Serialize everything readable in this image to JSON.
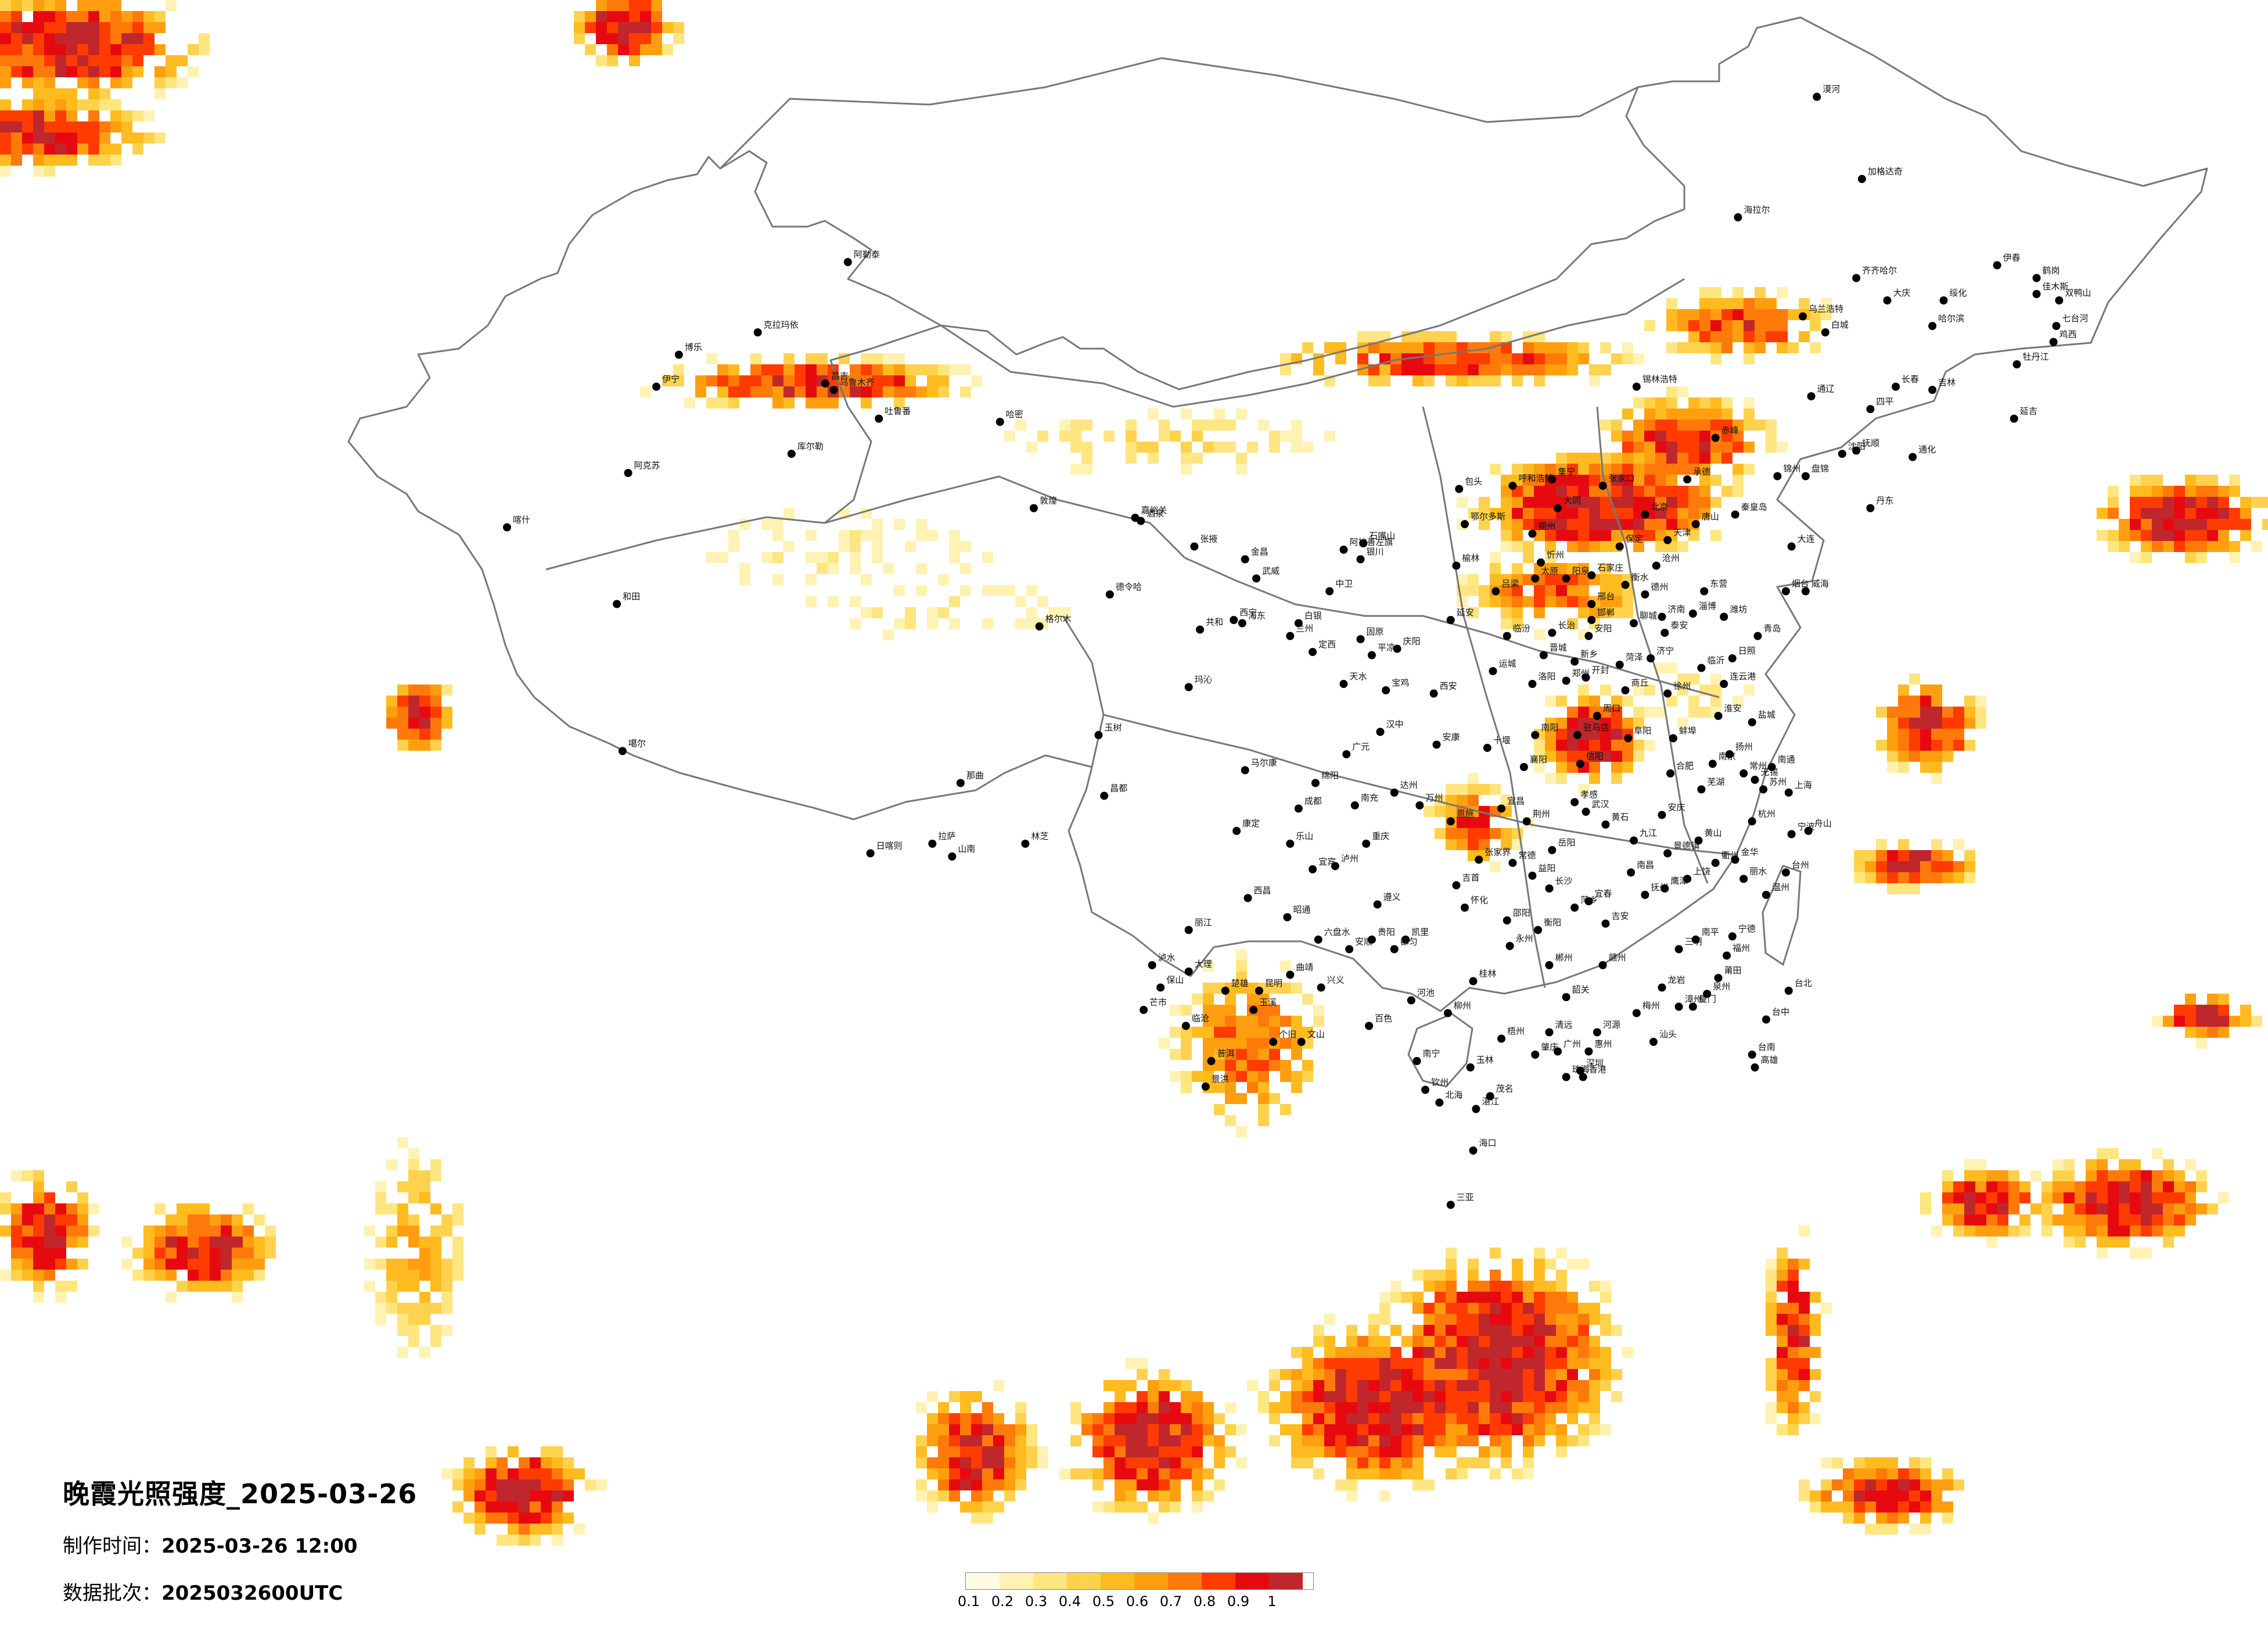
{
  "title": "晚霞光照强度_2025-03-26",
  "info": {
    "made_time_label": "制作时间：",
    "made_time_value": "2025-03-26 12:00",
    "batch_label": "数据批次：",
    "batch_value": "2025032600UTC"
  },
  "legend": {
    "ticks": [
      "0.1",
      "0.2",
      "0.3",
      "0.4",
      "0.5",
      "0.6",
      "0.7",
      "0.8",
      "0.9",
      "1"
    ],
    "colors": [
      "#fffbe6",
      "#fff2b3",
      "#ffe680",
      "#ffd24d",
      "#ffbb1f",
      "#ff9f0f",
      "#ff7a0a",
      "#ff3b00",
      "#e60a10",
      "#c0272d"
    ]
  },
  "cities": [
    {
      "name": "漠河",
      "lon": 122.5,
      "lat": 52.97
    },
    {
      "name": "加格达奇",
      "lon": 124.1,
      "lat": 50.4
    },
    {
      "name": "海拉尔",
      "lon": 119.7,
      "lat": 49.2
    },
    {
      "name": "齐齐哈尔",
      "lon": 123.9,
      "lat": 47.3
    },
    {
      "name": "伊春",
      "lon": 128.9,
      "lat": 47.7
    },
    {
      "name": "鹤岗",
      "lon": 130.3,
      "lat": 47.3
    },
    {
      "name": "佳木斯",
      "lon": 130.3,
      "lat": 46.8
    },
    {
      "name": "双鸭山",
      "lon": 131.1,
      "lat": 46.6
    },
    {
      "name": "大庆",
      "lon": 125.0,
      "lat": 46.6
    },
    {
      "name": "绥化",
      "lon": 127.0,
      "lat": 46.6
    },
    {
      "name": "哈尔滨",
      "lon": 126.6,
      "lat": 45.8
    },
    {
      "name": "七台河",
      "lon": 131.0,
      "lat": 45.8
    },
    {
      "name": "鸡西",
      "lon": 130.9,
      "lat": 45.3
    },
    {
      "name": "乌兰浩特",
      "lon": 122.0,
      "lat": 46.1
    },
    {
      "name": "白城",
      "lon": 122.8,
      "lat": 45.6
    },
    {
      "name": "牡丹江",
      "lon": 129.6,
      "lat": 44.6
    },
    {
      "name": "锡林浩特",
      "lon": 116.1,
      "lat": 43.9
    },
    {
      "name": "通辽",
      "lon": 122.3,
      "lat": 43.6
    },
    {
      "name": "长春",
      "lon": 125.3,
      "lat": 43.9
    },
    {
      "name": "吉林",
      "lon": 126.6,
      "lat": 43.8
    },
    {
      "name": "四平",
      "lon": 124.4,
      "lat": 43.2
    },
    {
      "name": "延吉",
      "lon": 129.5,
      "lat": 42.9
    },
    {
      "name": "通化",
      "lon": 125.9,
      "lat": 41.7
    },
    {
      "name": "赤峰",
      "lon": 118.9,
      "lat": 42.3
    },
    {
      "name": "沈阳",
      "lon": 123.4,
      "lat": 41.8
    },
    {
      "name": "抚顺",
      "lon": 123.9,
      "lat": 41.9
    },
    {
      "name": "锦州",
      "lon": 121.1,
      "lat": 41.1
    },
    {
      "name": "盘锦",
      "lon": 122.1,
      "lat": 41.1
    },
    {
      "name": "丹东",
      "lon": 124.4,
      "lat": 40.1
    },
    {
      "name": "大连",
      "lon": 121.6,
      "lat": 38.9
    },
    {
      "name": "承德",
      "lon": 117.9,
      "lat": 41.0
    },
    {
      "name": "张家口",
      "lon": 114.9,
      "lat": 40.8
    },
    {
      "name": "北京",
      "lon": 116.4,
      "lat": 39.9
    },
    {
      "name": "天津",
      "lon": 117.2,
      "lat": 39.1
    },
    {
      "name": "唐山",
      "lon": 118.2,
      "lat": 39.6
    },
    {
      "name": "秦皇岛",
      "lon": 119.6,
      "lat": 39.9
    },
    {
      "name": "保定",
      "lon": 115.5,
      "lat": 38.9
    },
    {
      "name": "石家庄",
      "lon": 114.5,
      "lat": 38.0
    },
    {
      "name": "邢台",
      "lon": 114.5,
      "lat": 37.1
    },
    {
      "name": "邯郸",
      "lon": 114.5,
      "lat": 36.6
    },
    {
      "name": "衡水",
      "lon": 115.7,
      "lat": 37.7
    },
    {
      "name": "沧州",
      "lon": 116.8,
      "lat": 38.3
    },
    {
      "name": "呼和浩特",
      "lon": 111.7,
      "lat": 40.8
    },
    {
      "name": "包头",
      "lon": 109.8,
      "lat": 40.7
    },
    {
      "name": "集宁",
      "lon": 113.1,
      "lat": 41.0
    },
    {
      "name": "大同",
      "lon": 113.3,
      "lat": 40.1
    },
    {
      "name": "朔州",
      "lon": 112.4,
      "lat": 39.3
    },
    {
      "name": "忻州",
      "lon": 112.7,
      "lat": 38.4
    },
    {
      "name": "太原",
      "lon": 112.5,
      "lat": 37.9
    },
    {
      "name": "阳泉",
      "lon": 113.6,
      "lat": 37.9
    },
    {
      "name": "长治",
      "lon": 113.1,
      "lat": 36.2
    },
    {
      "name": "晋城",
      "lon": 112.8,
      "lat": 35.5
    },
    {
      "name": "临汾",
      "lon": 111.5,
      "lat": 36.1
    },
    {
      "name": "运城",
      "lon": 111.0,
      "lat": 35.0
    },
    {
      "name": "吕梁",
      "lon": 111.1,
      "lat": 37.5
    },
    {
      "name": "鄂尔多斯",
      "lon": 110.0,
      "lat": 39.6
    },
    {
      "name": "榆林",
      "lon": 109.7,
      "lat": 38.3
    },
    {
      "name": "延安",
      "lon": 109.5,
      "lat": 36.6
    },
    {
      "name": "西安",
      "lon": 108.9,
      "lat": 34.3
    },
    {
      "name": "宝鸡",
      "lon": 107.2,
      "lat": 34.4
    },
    {
      "name": "汉中",
      "lon": 107.0,
      "lat": 33.1
    },
    {
      "name": "安康",
      "lon": 109.0,
      "lat": 32.7
    },
    {
      "name": "银川",
      "lon": 106.3,
      "lat": 38.5
    },
    {
      "name": "石嘴山",
      "lon": 106.4,
      "lat": 39.0
    },
    {
      "name": "中卫",
      "lon": 105.2,
      "lat": 37.5
    },
    {
      "name": "固原",
      "lon": 106.3,
      "lat": 36.0
    },
    {
      "name": "兰州",
      "lon": 103.8,
      "lat": 36.1
    },
    {
      "name": "天水",
      "lon": 105.7,
      "lat": 34.6
    },
    {
      "name": "定西",
      "lon": 104.6,
      "lat": 35.6
    },
    {
      "name": "平凉",
      "lon": 106.7,
      "lat": 35.5
    },
    {
      "name": "庆阳",
      "lon": 107.6,
      "lat": 35.7
    },
    {
      "name": "白银",
      "lon": 104.1,
      "lat": 36.5
    },
    {
      "name": "武威",
      "lon": 102.6,
      "lat": 37.9
    },
    {
      "name": "张掖",
      "lon": 100.4,
      "lat": 38.9
    },
    {
      "name": "金昌",
      "lon": 102.2,
      "lat": 38.5
    },
    {
      "name": "酒泉",
      "lon": 98.5,
      "lat": 39.7
    },
    {
      "name": "嘉峪关",
      "lon": 98.3,
      "lat": 39.8
    },
    {
      "name": "敦煌",
      "lon": 94.7,
      "lat": 40.1
    },
    {
      "name": "阿拉善左旗",
      "lon": 105.7,
      "lat": 38.8
    },
    {
      "name": "西宁",
      "lon": 101.8,
      "lat": 36.6
    },
    {
      "name": "海东",
      "lon": 102.1,
      "lat": 36.5
    },
    {
      "name": "格尔木",
      "lon": 94.9,
      "lat": 36.4
    },
    {
      "name": "德令哈",
      "lon": 97.4,
      "lat": 37.4
    },
    {
      "name": "共和",
      "lon": 100.6,
      "lat": 36.3
    },
    {
      "name": "玛沁",
      "lon": 100.2,
      "lat": 34.5
    },
    {
      "name": "玉树",
      "lon": 97.0,
      "lat": 33.0
    },
    {
      "name": "乌鲁木齐",
      "lon": 87.6,
      "lat": 43.8
    },
    {
      "name": "昌吉",
      "lon": 87.3,
      "lat": 44.0
    },
    {
      "name": "克拉玛依",
      "lon": 84.9,
      "lat": 45.6
    },
    {
      "name": "博乐",
      "lon": 82.1,
      "lat": 44.9
    },
    {
      "name": "伊宁",
      "lon": 81.3,
      "lat": 43.9
    },
    {
      "name": "阿勒泰",
      "lon": 88.1,
      "lat": 47.8
    },
    {
      "name": "哈密",
      "lon": 93.5,
      "lat": 42.8
    },
    {
      "name": "吐鲁番",
      "lon": 89.2,
      "lat": 42.9
    },
    {
      "name": "库尔勒",
      "lon": 86.1,
      "lat": 41.8
    },
    {
      "name": "阿克苏",
      "lon": 80.3,
      "lat": 41.2
    },
    {
      "name": "喀什",
      "lon": 76.0,
      "lat": 39.5
    },
    {
      "name": "和田",
      "lon": 79.9,
      "lat": 37.1
    },
    {
      "name": "噶尔",
      "lon": 80.1,
      "lat": 32.5
    },
    {
      "name": "那曲",
      "lon": 92.1,
      "lat": 31.5
    },
    {
      "name": "日喀则",
      "lon": 88.9,
      "lat": 29.3
    },
    {
      "name": "拉萨",
      "lon": 91.1,
      "lat": 29.6
    },
    {
      "name": "山南",
      "lon": 91.8,
      "lat": 29.2
    },
    {
      "name": "林芝",
      "lon": 94.4,
      "lat": 29.6
    },
    {
      "name": "昌都",
      "lon": 97.2,
      "lat": 31.1
    },
    {
      "name": "马尔康",
      "lon": 102.2,
      "lat": 31.9
    },
    {
      "name": "康定",
      "lon": 101.9,
      "lat": 30.0
    },
    {
      "name": "西昌",
      "lon": 102.3,
      "lat": 27.9
    },
    {
      "name": "成都",
      "lon": 104.1,
      "lat": 30.7
    },
    {
      "name": "绵阳",
      "lon": 104.7,
      "lat": 31.5
    },
    {
      "name": "广元",
      "lon": 105.8,
      "lat": 32.4
    },
    {
      "name": "南充",
      "lon": 106.1,
      "lat": 30.8
    },
    {
      "name": "达州",
      "lon": 107.5,
      "lat": 31.2
    },
    {
      "name": "乐山",
      "lon": 103.8,
      "lat": 29.6
    },
    {
      "name": "宜宾",
      "lon": 104.6,
      "lat": 28.8
    },
    {
      "name": "泸州",
      "lon": 105.4,
      "lat": 28.9
    },
    {
      "name": "重庆",
      "lon": 106.5,
      "lat": 29.6
    },
    {
      "name": "万州",
      "lon": 108.4,
      "lat": 30.8
    },
    {
      "name": "贵阳",
      "lon": 106.7,
      "lat": 26.6
    },
    {
      "name": "遵义",
      "lon": 106.9,
      "lat": 27.7
    },
    {
      "name": "六盘水",
      "lon": 104.8,
      "lat": 26.6
    },
    {
      "name": "安顺",
      "lon": 105.9,
      "lat": 26.3
    },
    {
      "name": "凯里",
      "lon": 107.9,
      "lat": 26.6
    },
    {
      "name": "都匀",
      "lon": 107.5,
      "lat": 26.3
    },
    {
      "name": "兴义",
      "lon": 104.9,
      "lat": 25.1
    },
    {
      "name": "昆明",
      "lon": 102.7,
      "lat": 25.0
    },
    {
      "name": "曲靖",
      "lon": 103.8,
      "lat": 25.5
    },
    {
      "name": "玉溪",
      "lon": 102.5,
      "lat": 24.4
    },
    {
      "name": "楚雄",
      "lon": 101.5,
      "lat": 25.0
    },
    {
      "name": "大理",
      "lon": 100.2,
      "lat": 25.6
    },
    {
      "name": "丽江",
      "lon": 100.2,
      "lat": 26.9
    },
    {
      "name": "保山",
      "lon": 99.2,
      "lat": 25.1
    },
    {
      "name": "临沧",
      "lon": 100.1,
      "lat": 23.9
    },
    {
      "name": "普洱",
      "lon": 101.0,
      "lat": 22.8
    },
    {
      "name": "景洪",
      "lon": 100.8,
      "lat": 22.0
    },
    {
      "name": "个旧",
      "lon": 103.2,
      "lat": 23.4
    },
    {
      "name": "文山",
      "lon": 104.2,
      "lat": 23.4
    },
    {
      "name": "昭通",
      "lon": 103.7,
      "lat": 27.3
    },
    {
      "name": "芒市",
      "lon": 98.6,
      "lat": 24.4
    },
    {
      "name": "泸水",
      "lon": 98.9,
      "lat": 25.8
    },
    {
      "name": "南宁",
      "lon": 108.3,
      "lat": 22.8
    },
    {
      "name": "柳州",
      "lon": 109.4,
      "lat": 24.3
    },
    {
      "name": "桂林",
      "lon": 110.3,
      "lat": 25.3
    },
    {
      "name": "百色",
      "lon": 106.6,
      "lat": 23.9
    },
    {
      "name": "河池",
      "lon": 108.1,
      "lat": 24.7
    },
    {
      "name": "玉林",
      "lon": 110.2,
      "lat": 22.6
    },
    {
      "name": "梧州",
      "lon": 111.3,
      "lat": 23.5
    },
    {
      "name": "北海",
      "lon": 109.1,
      "lat": 21.5
    },
    {
      "name": "钦州",
      "lon": 108.6,
      "lat": 21.9
    },
    {
      "name": "长沙",
      "lon": 113.0,
      "lat": 28.2
    },
    {
      "name": "岳阳",
      "lon": 113.1,
      "lat": 29.4
    },
    {
      "name": "常德",
      "lon": 111.7,
      "lat": 29.0
    },
    {
      "name": "益阳",
      "lon": 112.4,
      "lat": 28.6
    },
    {
      "name": "衡阳",
      "lon": 112.6,
      "lat": 26.9
    },
    {
      "name": "郴州",
      "lon": 113.0,
      "lat": 25.8
    },
    {
      "name": "邵阳",
      "lon": 111.5,
      "lat": 27.2
    },
    {
      "name": "怀化",
      "lon": 110.0,
      "lat": 27.6
    },
    {
      "name": "吉首",
      "lon": 109.7,
      "lat": 28.3
    },
    {
      "name": "张家界",
      "lon": 110.5,
      "lat": 29.1
    },
    {
      "name": "永州",
      "lon": 111.6,
      "lat": 26.4
    },
    {
      "name": "武汉",
      "lon": 114.3,
      "lat": 30.6
    },
    {
      "name": "宜昌",
      "lon": 111.3,
      "lat": 30.7
    },
    {
      "name": "荆州",
      "lon": 112.2,
      "lat": 30.3
    },
    {
      "name": "襄阳",
      "lon": 112.1,
      "lat": 32.0
    },
    {
      "name": "十堰",
      "lon": 110.8,
      "lat": 32.6
    },
    {
      "name": "恩施",
      "lon": 109.5,
      "lat": 30.3
    },
    {
      "name": "黄石",
      "lon": 115.0,
      "lat": 30.2
    },
    {
      "name": "孝感",
      "lon": 113.9,
      "lat": 30.9
    },
    {
      "name": "郑州",
      "lon": 113.6,
      "lat": 34.7
    },
    {
      "name": "洛阳",
      "lon": 112.4,
      "lat": 34.6
    },
    {
      "name": "开封",
      "lon": 114.3,
      "lat": 34.8
    },
    {
      "name": "新乡",
      "lon": 113.9,
      "lat": 35.3
    },
    {
      "name": "安阳",
      "lon": 114.4,
      "lat": 36.1
    },
    {
      "name": "南阳",
      "lon": 112.5,
      "lat": 33.0
    },
    {
      "name": "信阳",
      "lon": 114.1,
      "lat": 32.1
    },
    {
      "name": "周口",
      "lon": 114.7,
      "lat": 33.6
    },
    {
      "name": "商丘",
      "lon": 115.7,
      "lat": 34.4
    },
    {
      "name": "驻马店",
      "lon": 114.0,
      "lat": 33.0
    },
    {
      "name": "济南",
      "lon": 117.0,
      "lat": 36.7
    },
    {
      "name": "青岛",
      "lon": 120.4,
      "lat": 36.1
    },
    {
      "name": "烟台",
      "lon": 121.4,
      "lat": 37.5
    },
    {
      "name": "威海",
      "lon": 122.1,
      "lat": 37.5
    },
    {
      "name": "潍坊",
      "lon": 119.2,
      "lat": 36.7
    },
    {
      "name": "淄博",
      "lon": 118.1,
      "lat": 36.8
    },
    {
      "name": "临沂",
      "lon": 118.4,
      "lat": 35.1
    },
    {
      "name": "济宁",
      "lon": 116.6,
      "lat": 35.4
    },
    {
      "name": "泰安",
      "lon": 117.1,
      "lat": 36.2
    },
    {
      "name": "德州",
      "lon": 116.4,
      "lat": 37.4
    },
    {
      "name": "聊城",
      "lon": 116.0,
      "lat": 36.5
    },
    {
      "name": "菏泽",
      "lon": 115.5,
      "lat": 35.2
    },
    {
      "name": "日照",
      "lon": 119.5,
      "lat": 35.4
    },
    {
      "name": "东营",
      "lon": 118.5,
      "lat": 37.5
    },
    {
      "name": "南京",
      "lon": 118.8,
      "lat": 32.1
    },
    {
      "name": "徐州",
      "lon": 117.2,
      "lat": 34.3
    },
    {
      "name": "连云港",
      "lon": 119.2,
      "lat": 34.6
    },
    {
      "name": "盐城",
      "lon": 120.2,
      "lat": 33.4
    },
    {
      "name": "淮安",
      "lon": 119.0,
      "lat": 33.6
    },
    {
      "name": "扬州",
      "lon": 119.4,
      "lat": 32.4
    },
    {
      "name": "南通",
      "lon": 120.9,
      "lat": 32.0
    },
    {
      "name": "苏州",
      "lon": 120.6,
      "lat": 31.3
    },
    {
      "name": "无锡",
      "lon": 120.3,
      "lat": 31.6
    },
    {
      "name": "常州",
      "lon": 119.9,
      "lat": 31.8
    },
    {
      "name": "上海",
      "lon": 121.5,
      "lat": 31.2
    },
    {
      "name": "合肥",
      "lon": 117.3,
      "lat": 31.8
    },
    {
      "name": "蚌埠",
      "lon": 117.4,
      "lat": 32.9
    },
    {
      "name": "阜阳",
      "lon": 115.8,
      "lat": 32.9
    },
    {
      "name": "安庆",
      "lon": 117.0,
      "lat": 30.5
    },
    {
      "name": "芜湖",
      "lon": 118.4,
      "lat": 31.3
    },
    {
      "name": "黄山",
      "lon": 118.3,
      "lat": 29.7
    },
    {
      "name": "杭州",
      "lon": 120.2,
      "lat": 30.3
    },
    {
      "name": "宁波",
      "lon": 121.6,
      "lat": 29.9
    },
    {
      "name": "温州",
      "lon": 120.7,
      "lat": 28.0
    },
    {
      "name": "金华",
      "lon": 119.6,
      "lat": 29.1
    },
    {
      "name": "台州",
      "lon": 121.4,
      "lat": 28.7
    },
    {
      "name": "衢州",
      "lon": 118.9,
      "lat": 29.0
    },
    {
      "name": "丽水",
      "lon": 119.9,
      "lat": 28.5
    },
    {
      "name": "舟山",
      "lon": 122.2,
      "lat": 30.0
    },
    {
      "name": "南昌",
      "lon": 115.9,
      "lat": 28.7
    },
    {
      "name": "九江",
      "lon": 116.0,
      "lat": 29.7
    },
    {
      "name": "景德镇",
      "lon": 117.2,
      "lat": 29.3
    },
    {
      "name": "上饶",
      "lon": 117.9,
      "lat": 28.5
    },
    {
      "name": "鹰潭",
      "lon": 117.1,
      "lat": 28.2
    },
    {
      "name": "抚州",
      "lon": 116.4,
      "lat": 28.0
    },
    {
      "name": "吉安",
      "lon": 115.0,
      "lat": 27.1
    },
    {
      "name": "赣州",
      "lon": 114.9,
      "lat": 25.8
    },
    {
      "name": "宜春",
      "lon": 114.4,
      "lat": 27.8
    },
    {
      "name": "萍乡",
      "lon": 113.9,
      "lat": 27.6
    },
    {
      "name": "福州",
      "lon": 119.3,
      "lat": 26.1
    },
    {
      "name": "厦门",
      "lon": 118.1,
      "lat": 24.5
    },
    {
      "name": "泉州",
      "lon": 118.6,
      "lat": 24.9
    },
    {
      "name": "漳州",
      "lon": 117.6,
      "lat": 24.5
    },
    {
      "name": "莆田",
      "lon": 119.0,
      "lat": 25.4
    },
    {
      "name": "南平",
      "lon": 118.2,
      "lat": 26.6
    },
    {
      "name": "三明",
      "lon": 117.6,
      "lat": 26.3
    },
    {
      "name": "龙岩",
      "lon": 117.0,
      "lat": 25.1
    },
    {
      "name": "宁德",
      "lon": 119.5,
      "lat": 26.7
    },
    {
      "name": "广州",
      "lon": 113.3,
      "lat": 23.1
    },
    {
      "name": "深圳",
      "lon": 114.1,
      "lat": 22.5
    },
    {
      "name": "珠海",
      "lon": 113.6,
      "lat": 22.3
    },
    {
      "name": "汕头",
      "lon": 116.7,
      "lat": 23.4
    },
    {
      "name": "韶关",
      "lon": 113.6,
      "lat": 24.8
    },
    {
      "name": "梅州",
      "lon": 116.1,
      "lat": 24.3
    },
    {
      "name": "惠州",
      "lon": 114.4,
      "lat": 23.1
    },
    {
      "name": "湛江",
      "lon": 110.4,
      "lat": 21.3
    },
    {
      "name": "茂名",
      "lon": 110.9,
      "lat": 21.7
    },
    {
      "name": "肇庆",
      "lon": 112.5,
      "lat": 23.0
    },
    {
      "name": "清远",
      "lon": 113.0,
      "lat": 23.7
    },
    {
      "name": "河源",
      "lon": 114.7,
      "lat": 23.7
    },
    {
      "name": "海口",
      "lon": 110.3,
      "lat": 20.0
    },
    {
      "name": "三亚",
      "lon": 109.5,
      "lat": 18.3
    },
    {
      "name": "台北",
      "lon": 121.5,
      "lat": 25.0
    },
    {
      "name": "台中",
      "lon": 120.7,
      "lat": 24.1
    },
    {
      "name": "台南",
      "lon": 120.2,
      "lat": 23.0
    },
    {
      "name": "高雄",
      "lon": 120.3,
      "lat": 22.6
    },
    {
      "name": "香港",
      "lon": 114.2,
      "lat": 22.3
    }
  ]
}
